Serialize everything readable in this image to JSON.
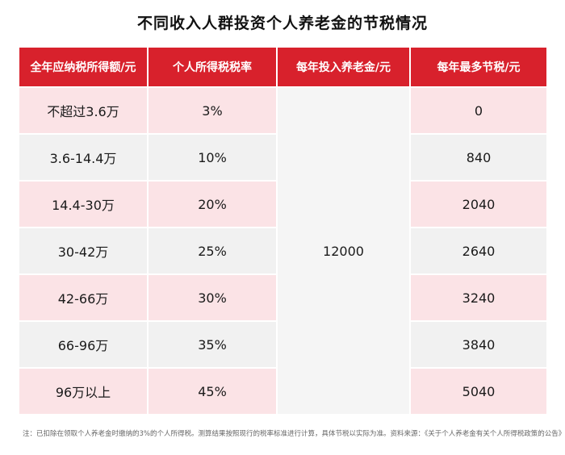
{
  "title": "不同收入人群投资个人养老金的节税情况",
  "table": {
    "headers": [
      "全年应纳税所得额/元",
      "个人所得税税率",
      "每年投入养老金/元",
      "每年最多节税/元"
    ],
    "merged_value": "12000",
    "rows": [
      {
        "income": "不超过3.6万",
        "rate": "3%",
        "saving": "0"
      },
      {
        "income": "3.6-14.4万",
        "rate": "10%",
        "saving": "840"
      },
      {
        "income": "14.4-30万",
        "rate": "20%",
        "saving": "2040"
      },
      {
        "income": "30-42万",
        "rate": "25%",
        "saving": "2640"
      },
      {
        "income": "42-66万",
        "rate": "30%",
        "saving": "3240"
      },
      {
        "income": "66-96万",
        "rate": "35%",
        "saving": "3840"
      },
      {
        "income": "96万以上",
        "rate": "45%",
        "saving": "5040"
      }
    ]
  },
  "note": "注：已扣除在领取个人养老金时缴纳的3%的个人所得税。测算结果按照现行的税率标准进行计算，具体节税以实际为准。资料来源：《关于个人养老金有关个人所得税政策的公告》",
  "colors": {
    "header": "#d8212c",
    "row_pink": "#fbe3e6",
    "row_gray": "#f1f1f1"
  }
}
